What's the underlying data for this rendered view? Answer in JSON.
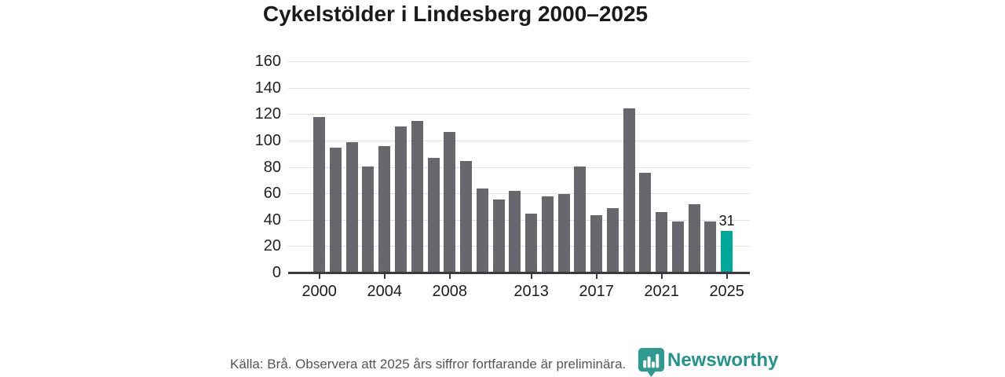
{
  "header": {
    "title": "Cykelstölder i Lindesberg 2000–2025"
  },
  "chart_data": {
    "type": "bar",
    "title": "Cykelstölder i Lindesberg 2000–2025",
    "categories": [
      2000,
      2001,
      2002,
      2003,
      2004,
      2005,
      2006,
      2007,
      2008,
      2009,
      2010,
      2011,
      2012,
      2013,
      2014,
      2015,
      2016,
      2017,
      2018,
      2019,
      2020,
      2021,
      2022,
      2023,
      2024,
      2025
    ],
    "values": [
      117,
      94,
      98,
      80,
      95,
      110,
      114,
      86,
      106,
      84,
      63,
      55,
      61,
      44,
      57,
      59,
      80,
      43,
      48,
      124,
      75,
      45,
      38,
      51,
      38,
      31
    ],
    "highlight_category": 2025,
    "highlight_label": "31",
    "xlabel": "",
    "ylabel": "",
    "ylim": [
      0,
      160
    ],
    "yticks": [
      0,
      20,
      40,
      60,
      80,
      100,
      120,
      140,
      160
    ],
    "xtick_labels": [
      "2000",
      "2004",
      "2008",
      "2013",
      "2017",
      "2021",
      "2025"
    ],
    "grid": true,
    "legend": "none",
    "bar_color": "#67676d",
    "highlight_color": "#00a79b"
  },
  "footer": {
    "source_note": "Källa: Brå. Observera att 2025 års siffror fortfarande är preliminära.",
    "brand": "Newsworthy",
    "brand_color": "#23948a",
    "logo_icon": "newsworthy-logo-icon"
  }
}
